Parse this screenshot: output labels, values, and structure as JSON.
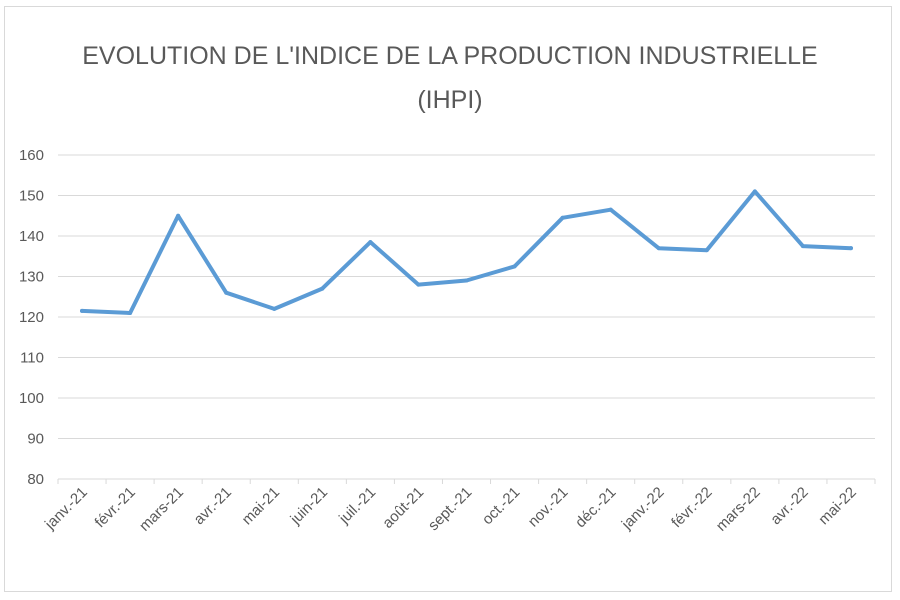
{
  "chart_data": {
    "type": "line",
    "title": "EVOLUTION DE L'INDICE DE LA PRODUCTION INDUSTRIELLE",
    "subtitle": "(IHPI)",
    "xlabel": "",
    "ylabel": "",
    "ylim": [
      80,
      160
    ],
    "yticks": [
      "80",
      "90",
      "100",
      "110",
      "120",
      "130",
      "140",
      "150",
      "160"
    ],
    "categories": [
      "janv.-21",
      "févr.-21",
      "mars-21",
      "avr.-21",
      "mai-21",
      "juin-21",
      "juil.-21",
      "août-21",
      "sept.-21",
      "oct.-21",
      "nov.-21",
      "déc.-21",
      "janv.-22",
      "févr.-22",
      "mars-22",
      "avr.-22",
      "mai-22"
    ],
    "series": [
      {
        "name": "IHPI",
        "color": "#5b9bd5",
        "values": [
          121.5,
          121,
          145,
          126,
          122,
          127,
          138.5,
          128,
          129,
          132.5,
          144.5,
          146.5,
          137,
          136.5,
          151,
          137.5,
          137
        ]
      }
    ],
    "grid": true,
    "legend": "none"
  }
}
